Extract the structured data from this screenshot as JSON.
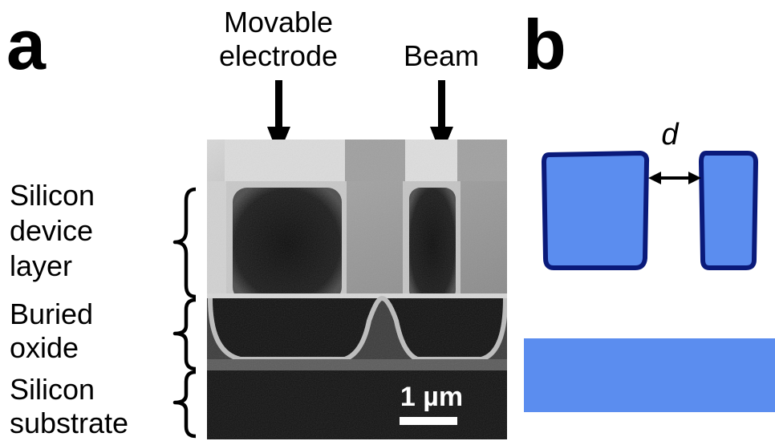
{
  "panel_a": {
    "letter": "a",
    "top_labels": {
      "movable_electrode": [
        "Movable",
        "electrode"
      ],
      "beam": "Beam"
    },
    "layer_labels": {
      "device_layer": [
        "Silicon",
        "device",
        "layer"
      ],
      "buried_oxide": [
        "Buried",
        "oxide"
      ],
      "substrate": [
        "Silicon",
        "substrate"
      ]
    },
    "scale_bar": "1 µm"
  },
  "panel_b": {
    "letter": "b",
    "gap_label": "d",
    "colors": {
      "block_fill": "#5b8def",
      "block_outline": "#0a1a7a"
    }
  }
}
